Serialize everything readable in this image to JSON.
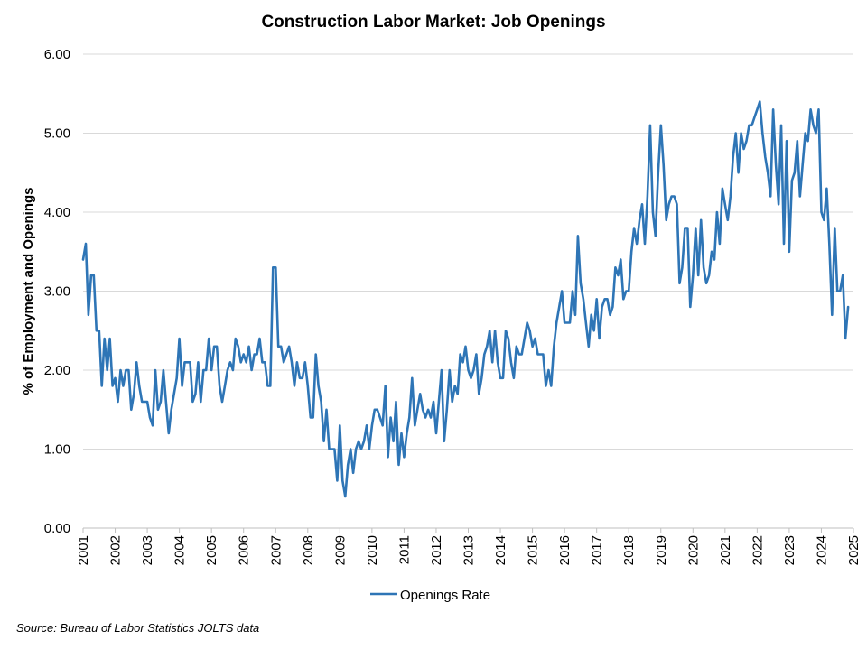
{
  "chart_data": {
    "type": "line",
    "title": "Construction Labor Market: Job Openings",
    "xlabel": "",
    "ylabel": "% of Employment and Openings",
    "ylim": [
      0,
      6
    ],
    "yticks": [
      "0.00",
      "1.00",
      "2.00",
      "3.00",
      "4.00",
      "5.00",
      "6.00"
    ],
    "xticks": [
      "2001",
      "2002",
      "2003",
      "2004",
      "2005",
      "2006",
      "2007",
      "2008",
      "2009",
      "2010",
      "2011",
      "2012",
      "2013",
      "2014",
      "2015",
      "2016",
      "2017",
      "2018",
      "2019",
      "2020",
      "2021",
      "2022",
      "2023",
      "2024",
      "2025"
    ],
    "grid": true,
    "legend": "bottom",
    "source": "Source: Bureau of Labor Statistics JOLTS data",
    "color": "#2e75b6",
    "series": [
      {
        "name": "Openings Rate",
        "start": "2001-01",
        "frequency": "monthly",
        "values": [
          3.4,
          3.6,
          2.7,
          3.2,
          3.2,
          2.5,
          2.5,
          1.8,
          2.4,
          2.0,
          2.4,
          1.8,
          1.9,
          1.6,
          2.0,
          1.8,
          2.0,
          2.0,
          1.5,
          1.7,
          2.1,
          1.8,
          1.6,
          1.6,
          1.6,
          1.4,
          1.3,
          2.0,
          1.5,
          1.6,
          2.0,
          1.6,
          1.2,
          1.5,
          1.7,
          1.9,
          2.4,
          1.8,
          2.1,
          2.1,
          2.1,
          1.6,
          1.7,
          2.1,
          1.6,
          2.0,
          2.0,
          2.4,
          2.0,
          2.3,
          2.3,
          1.8,
          1.6,
          1.8,
          2.0,
          2.1,
          2.0,
          2.4,
          2.3,
          2.1,
          2.2,
          2.1,
          2.3,
          2.0,
          2.2,
          2.2,
          2.4,
          2.1,
          2.1,
          1.8,
          1.8,
          3.3,
          3.3,
          2.3,
          2.3,
          2.1,
          2.2,
          2.3,
          2.1,
          1.8,
          2.1,
          1.9,
          1.9,
          2.1,
          1.8,
          1.4,
          1.4,
          2.2,
          1.8,
          1.6,
          1.1,
          1.5,
          1.0,
          1.0,
          1.0,
          0.6,
          1.3,
          0.6,
          0.4,
          0.8,
          1.0,
          0.7,
          1.0,
          1.1,
          1.0,
          1.1,
          1.3,
          1.0,
          1.3,
          1.5,
          1.5,
          1.4,
          1.3,
          1.8,
          0.9,
          1.4,
          1.1,
          1.6,
          0.8,
          1.2,
          0.9,
          1.2,
          1.4,
          1.9,
          1.3,
          1.5,
          1.7,
          1.5,
          1.4,
          1.5,
          1.4,
          1.6,
          1.2,
          1.6,
          2.0,
          1.1,
          1.5,
          2.0,
          1.6,
          1.8,
          1.7,
          2.2,
          2.1,
          2.3,
          2.0,
          1.9,
          2.0,
          2.2,
          1.7,
          1.9,
          2.2,
          2.3,
          2.5,
          2.1,
          2.5,
          2.1,
          1.9,
          1.9,
          2.5,
          2.4,
          2.1,
          1.9,
          2.3,
          2.2,
          2.2,
          2.4,
          2.6,
          2.5,
          2.3,
          2.4,
          2.2,
          2.2,
          2.2,
          1.8,
          2.0,
          1.8,
          2.3,
          2.6,
          2.8,
          3.0,
          2.6,
          2.6,
          2.6,
          3.0,
          2.7,
          3.7,
          3.1,
          2.9,
          2.6,
          2.3,
          2.7,
          2.5,
          2.9,
          2.4,
          2.8,
          2.9,
          2.9,
          2.7,
          2.8,
          3.3,
          3.2,
          3.4,
          2.9,
          3.0,
          3.0,
          3.5,
          3.8,
          3.6,
          3.9,
          4.1,
          3.6,
          4.2,
          5.1,
          4.0,
          3.7,
          4.5,
          5.1,
          4.6,
          3.9,
          4.1,
          4.2,
          4.2,
          4.1,
          3.1,
          3.3,
          3.8,
          3.8,
          2.8,
          3.2,
          3.8,
          3.2,
          3.9,
          3.3,
          3.1,
          3.2,
          3.5,
          3.4,
          4.0,
          3.6,
          4.3,
          4.1,
          3.9,
          4.2,
          4.7,
          5.0,
          4.5,
          5.0,
          4.8,
          4.9,
          5.1,
          5.1,
          5.2,
          5.3,
          5.4,
          5.0,
          4.7,
          4.5,
          4.2,
          5.3,
          4.6,
          4.1,
          5.1,
          3.6,
          4.9,
          3.5,
          4.4,
          4.5,
          4.9,
          4.2,
          4.6,
          5.0,
          4.9,
          5.3,
          5.1,
          5.0,
          5.3,
          4.0,
          3.9,
          4.3,
          3.6,
          2.7,
          3.8,
          3.0,
          3.0,
          3.2,
          2.4,
          2.8
        ]
      }
    ]
  }
}
